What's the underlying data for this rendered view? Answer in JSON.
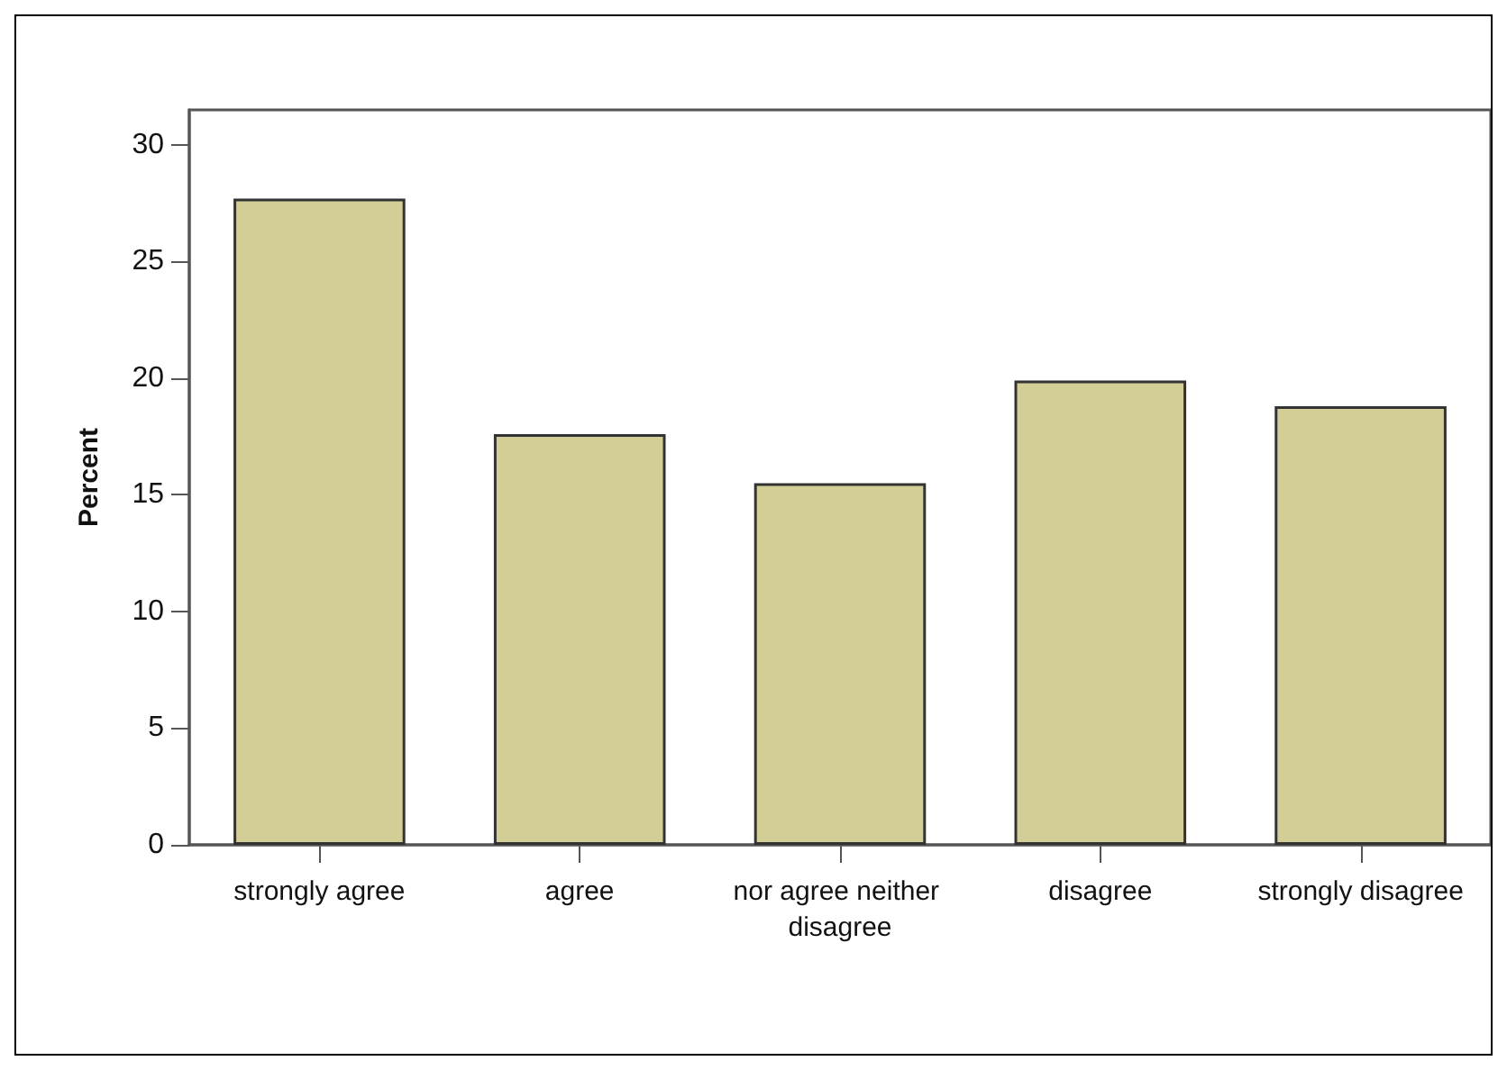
{
  "chart_data": {
    "type": "bar",
    "ylabel": "Percent",
    "categories": [
      "strongly agree",
      "agree",
      "nor agree neither disagree",
      "disagree",
      "strongly disagree"
    ],
    "values": [
      27.7,
      17.6,
      15.5,
      19.9,
      18.8
    ],
    "color": "#d3cd96",
    "ylim": [
      0,
      31.5
    ],
    "yticks": [
      0,
      5,
      10,
      15,
      20,
      25,
      30
    ],
    "grid": false
  }
}
